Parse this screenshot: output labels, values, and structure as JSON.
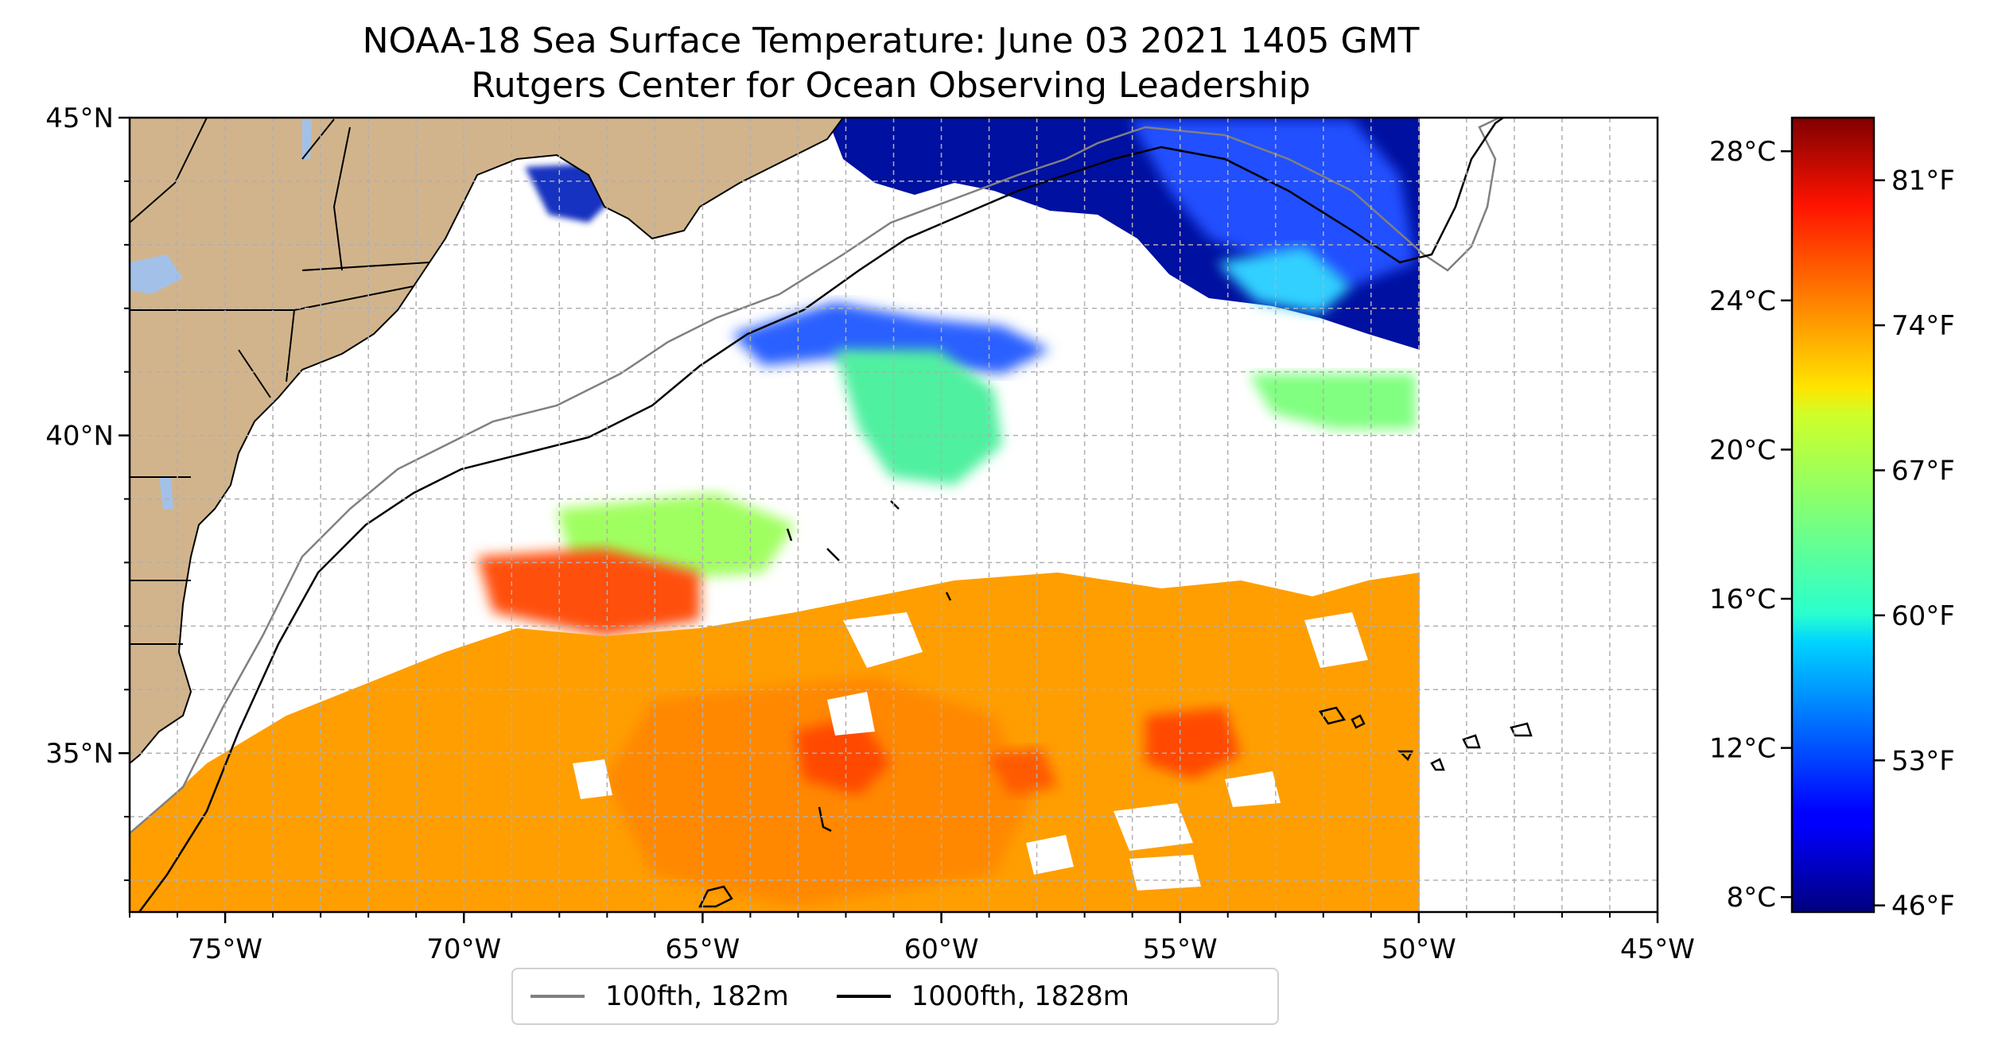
{
  "title": {
    "line1": "NOAA-18 Sea Surface Temperature: June 03 2021 1405 GMT",
    "line2": "Rutgers Center for Ocean Observing Leadership"
  },
  "map": {
    "lon_range": [
      -77,
      -45
    ],
    "lat_range": [
      32.5,
      45
    ],
    "data_extent_lon": [
      -77,
      -50
    ],
    "land_color": "#d2b48c",
    "inland_water_color": "#a3c1e8",
    "grid_style": "dashed",
    "x_ticks": [
      {
        "lon": -75,
        "label": "75°W"
      },
      {
        "lon": -70,
        "label": "70°W"
      },
      {
        "lon": -65,
        "label": "65°W"
      },
      {
        "lon": -60,
        "label": "60°W"
      },
      {
        "lon": -55,
        "label": "55°W"
      },
      {
        "lon": -50,
        "label": "50°W"
      },
      {
        "lon": -45,
        "label": "45°W"
      }
    ],
    "y_ticks": [
      {
        "lat": 45,
        "label": "45°N"
      },
      {
        "lat": 40,
        "label": "40°N"
      },
      {
        "lat": 35,
        "label": "35°N"
      }
    ]
  },
  "colorbar": {
    "colormap": "jet",
    "celsius_ticks": [
      {
        "label": "28°C",
        "value": 28
      },
      {
        "label": "24°C",
        "value": 24
      },
      {
        "label": "20°C",
        "value": 20
      },
      {
        "label": "16°C",
        "value": 16
      },
      {
        "label": "12°C",
        "value": 12
      },
      {
        "label": "8°C",
        "value": 8
      }
    ],
    "fahrenheit_ticks": [
      {
        "label": "81°F",
        "value": 81
      },
      {
        "label": "74°F",
        "value": 74
      },
      {
        "label": "67°F",
        "value": 67
      },
      {
        "label": "60°F",
        "value": 60
      },
      {
        "label": "53°F",
        "value": 53
      },
      {
        "label": "46°F",
        "value": 46
      }
    ]
  },
  "legend": {
    "items": [
      {
        "label": "100fth, 182m",
        "color": "#808080"
      },
      {
        "label": "1000fth, 1828m",
        "color": "#000000"
      }
    ]
  }
}
